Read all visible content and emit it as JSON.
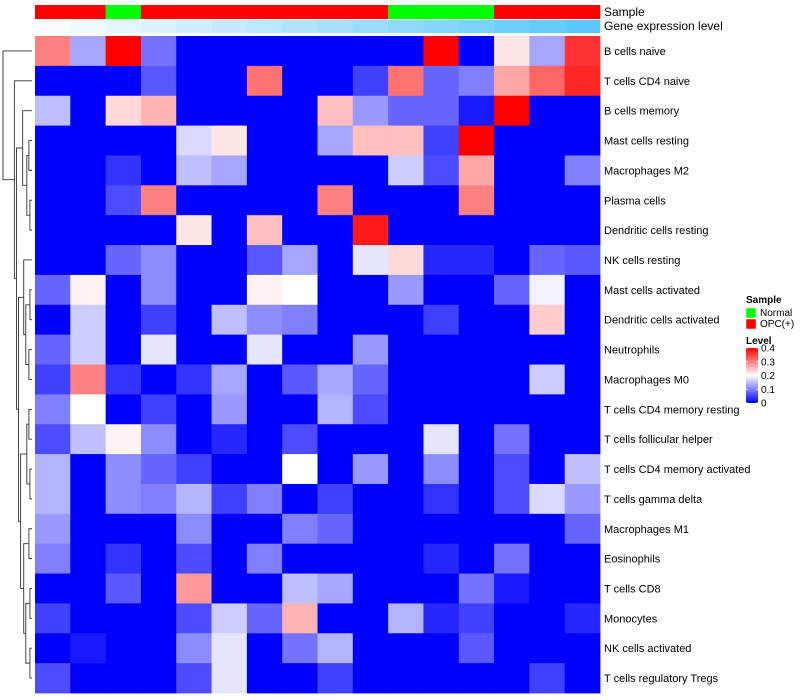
{
  "chart_data": {
    "type": "heatmap",
    "annotation_labels": {
      "sample": "Sample",
      "gene_expression": "Gene expression level"
    },
    "rows": [
      "B cells naive",
      "T cells CD4 naive",
      "B cells memory",
      "Mast cells resting",
      "Macrophages M2",
      "Plasma cells",
      "Dendritic cells resting",
      "NK cells resting",
      "Mast cells activated",
      "Dendritic cells activated",
      "Neutrophils",
      "Macrophages M0",
      "T cells CD4 memory resting",
      "T cells follicular helper",
      "T cells CD4 memory activated",
      "T cells gamma delta",
      "Macrophages M1",
      "Eosinophils",
      "T cells CD8",
      "Monocytes",
      "NK cells activated",
      "T cells regulatory  Tregs"
    ],
    "sample_groups": [
      "OPC(+)",
      "OPC(+)",
      "Normal",
      "OPC(+)",
      "OPC(+)",
      "OPC(+)",
      "OPC(+)",
      "OPC(+)",
      "OPC(+)",
      "OPC(+)",
      "Normal",
      "Normal",
      "Normal",
      "OPC(+)",
      "OPC(+)",
      "OPC(+)"
    ],
    "expression_level": [
      0.02,
      0.06,
      0.1,
      0.14,
      0.18,
      0.22,
      0.26,
      0.3,
      0.34,
      0.38,
      0.42,
      0.46,
      0.5,
      0.54,
      0.58,
      0.62
    ],
    "values": [
      [
        0.3,
        0.13,
        0.4,
        0.09,
        0,
        0,
        0,
        0,
        0,
        0,
        0,
        0.4,
        0,
        0.22,
        0.13,
        0.36
      ],
      [
        0,
        0,
        0,
        0.07,
        0,
        0,
        0.31,
        0,
        0,
        0.05,
        0.31,
        0.08,
        0.1,
        0.27,
        0.32,
        0.37
      ],
      [
        0.15,
        0,
        0.23,
        0.26,
        0,
        0,
        0,
        0,
        0.25,
        0.12,
        0.08,
        0.08,
        0.02,
        0.4,
        0,
        0
      ],
      [
        0,
        0,
        0,
        0,
        0.17,
        0.22,
        0,
        0,
        0.13,
        0.25,
        0.25,
        0.05,
        0.4,
        0,
        0,
        0
      ],
      [
        0,
        0,
        0.04,
        0,
        0.15,
        0.13,
        0,
        0,
        0,
        0,
        0.16,
        0.06,
        0.27,
        0,
        0,
        0.1
      ],
      [
        0,
        0,
        0.06,
        0.3,
        0,
        0,
        0,
        0,
        0.3,
        0,
        0,
        0,
        0.3,
        0,
        0,
        0
      ],
      [
        0,
        0,
        0,
        0,
        0.22,
        0,
        0.25,
        0,
        0,
        0.38,
        0,
        0,
        0,
        0,
        0,
        0
      ],
      [
        0,
        0,
        0.08,
        0.11,
        0,
        0,
        0.07,
        0.13,
        0,
        0.18,
        0.23,
        0.03,
        0.03,
        0,
        0.08,
        0.07
      ],
      [
        0.08,
        0.21,
        0,
        0.11,
        0,
        0,
        0.21,
        0.2,
        0,
        0,
        0.12,
        0,
        0,
        0.08,
        0.19,
        0
      ],
      [
        0,
        0.16,
        0,
        0.05,
        0,
        0.15,
        0.11,
        0.1,
        0,
        0,
        0,
        0.05,
        0,
        0,
        0.24,
        0
      ],
      [
        0.08,
        0.16,
        0,
        0.18,
        0,
        0,
        0.18,
        0,
        0,
        0.12,
        0,
        0,
        0,
        0,
        0,
        0
      ],
      [
        0.05,
        0.3,
        0.04,
        0,
        0.04,
        0.13,
        0,
        0.07,
        0.13,
        0.08,
        0,
        0,
        0,
        0,
        0.16,
        0
      ],
      [
        0.1,
        0.2,
        0,
        0.05,
        0,
        0.12,
        0,
        0,
        0.14,
        0.06,
        0,
        0,
        0,
        0,
        0,
        0
      ],
      [
        0.06,
        0.15,
        0.21,
        0.11,
        0,
        0.03,
        0,
        0.06,
        0,
        0,
        0,
        0.18,
        0,
        0.09,
        0,
        0
      ],
      [
        0.14,
        0,
        0.11,
        0.08,
        0.05,
        0,
        0,
        0.2,
        0,
        0.12,
        0,
        0.11,
        0,
        0.06,
        0,
        0.15
      ],
      [
        0.14,
        0,
        0.11,
        0.1,
        0.14,
        0.05,
        0.1,
        0,
        0.05,
        0,
        0,
        0.04,
        0,
        0.06,
        0.17,
        0.12
      ],
      [
        0.12,
        0,
        0,
        0,
        0.11,
        0,
        0,
        0.1,
        0.08,
        0,
        0,
        0,
        0,
        0,
        0,
        0.08
      ],
      [
        0.1,
        0,
        0.04,
        0,
        0.06,
        0,
        0.1,
        0,
        0,
        0,
        0,
        0.03,
        0,
        0.09,
        0,
        0
      ],
      [
        0,
        0,
        0.07,
        0,
        0.28,
        0,
        0,
        0.15,
        0.13,
        0,
        0,
        0,
        0.09,
        0.02,
        0,
        0
      ],
      [
        0.05,
        0,
        0,
        0,
        0.06,
        0.16,
        0.08,
        0.26,
        0,
        0,
        0.14,
        0.03,
        0.05,
        0,
        0,
        0.03
      ],
      [
        0,
        0.02,
        0,
        0,
        0.11,
        0.18,
        0,
        0.09,
        0.14,
        0,
        0,
        0,
        0.07,
        0,
        0,
        0
      ],
      [
        0.06,
        0,
        0,
        0,
        0.06,
        0.18,
        0,
        0,
        0.05,
        0,
        0,
        0,
        0,
        0,
        0.05,
        0
      ]
    ],
    "color_scale": {
      "min": 0,
      "max": 0.4,
      "low": "#0000ff",
      "mid": "#ffffff",
      "high": "#ff0000"
    },
    "legend": {
      "sample": {
        "title": "Sample",
        "entries": [
          {
            "label": "Normal",
            "color": "#00ff00"
          },
          {
            "label": "OPC(+)",
            "color": "#ff0000"
          }
        ]
      },
      "level": {
        "title": "Level",
        "ticks": [
          "0.4",
          "0.3",
          "0.2",
          "0.1",
          "0"
        ],
        "tick_values": [
          0.4,
          0.3,
          0.2,
          0.1,
          0
        ]
      }
    },
    "dendrogram": {
      "side": "left",
      "orientation": "rows"
    },
    "grid": false
  }
}
